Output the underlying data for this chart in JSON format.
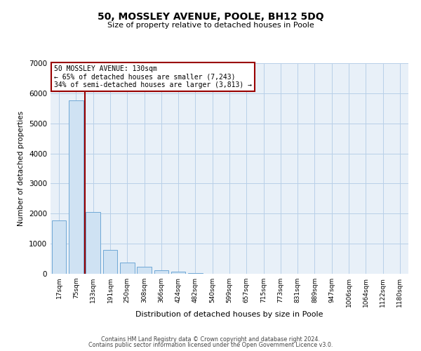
{
  "title": "50, MOSSLEY AVENUE, POOLE, BH12 5DQ",
  "subtitle": "Size of property relative to detached houses in Poole",
  "xlabel": "Distribution of detached houses by size in Poole",
  "ylabel": "Number of detached properties",
  "bar_labels": [
    "17sqm",
    "75sqm",
    "133sqm",
    "191sqm",
    "250sqm",
    "308sqm",
    "366sqm",
    "424sqm",
    "482sqm",
    "540sqm",
    "599sqm",
    "657sqm",
    "715sqm",
    "773sqm",
    "831sqm",
    "889sqm",
    "947sqm",
    "1006sqm",
    "1064sqm",
    "1122sqm",
    "1180sqm"
  ],
  "bar_values": [
    1780,
    5760,
    2060,
    800,
    365,
    225,
    110,
    60,
    30,
    10,
    5,
    0,
    0,
    0,
    0,
    0,
    0,
    0,
    0,
    0,
    0
  ],
  "bar_color": "#cfe2f3",
  "bar_edge_color": "#6fa8d6",
  "highlight_line_color": "#990000",
  "annotation_border_color": "#990000",
  "ylim": [
    0,
    7000
  ],
  "yticks": [
    0,
    1000,
    2000,
    3000,
    4000,
    5000,
    6000,
    7000
  ],
  "background_color": "#ffffff",
  "plot_bg_color": "#e8f0f8",
  "grid_color": "#b8cfe8",
  "footnote1": "Contains HM Land Registry data © Crown copyright and database right 2024.",
  "footnote2": "Contains public sector information licensed under the Open Government Licence v3.0."
}
